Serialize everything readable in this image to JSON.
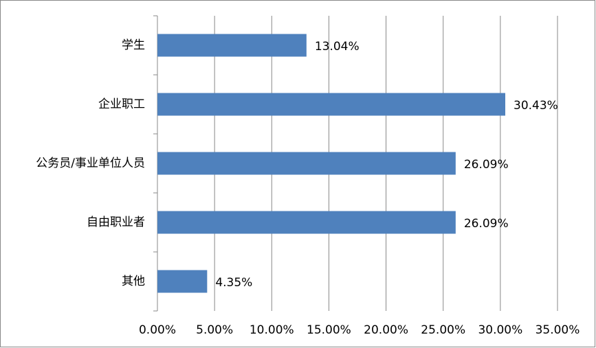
{
  "chart_data": {
    "type": "hbar",
    "categories": [
      "学生",
      "企业职工",
      "公务员/事业单位人员",
      "自由职业者",
      "其他"
    ],
    "values": [
      13.04,
      30.43,
      26.09,
      26.09,
      4.35
    ],
    "value_labels": [
      "13.04%",
      "30.43%",
      "26.09%",
      "26.09%",
      "4.35%"
    ],
    "color": "#4f81bd",
    "xlim": [
      0,
      35
    ],
    "xticks": [
      {
        "value": 0,
        "label": "0.00%"
      },
      {
        "value": 5,
        "label": "5.00%"
      },
      {
        "value": 10,
        "label": "10.00%"
      },
      {
        "value": 15,
        "label": "15.00%"
      },
      {
        "value": 20,
        "label": "20.00%"
      },
      {
        "value": 25,
        "label": "25.00%"
      },
      {
        "value": 30,
        "label": "30.00%"
      },
      {
        "value": 35,
        "label": "35.00%"
      }
    ],
    "grid": true
  }
}
